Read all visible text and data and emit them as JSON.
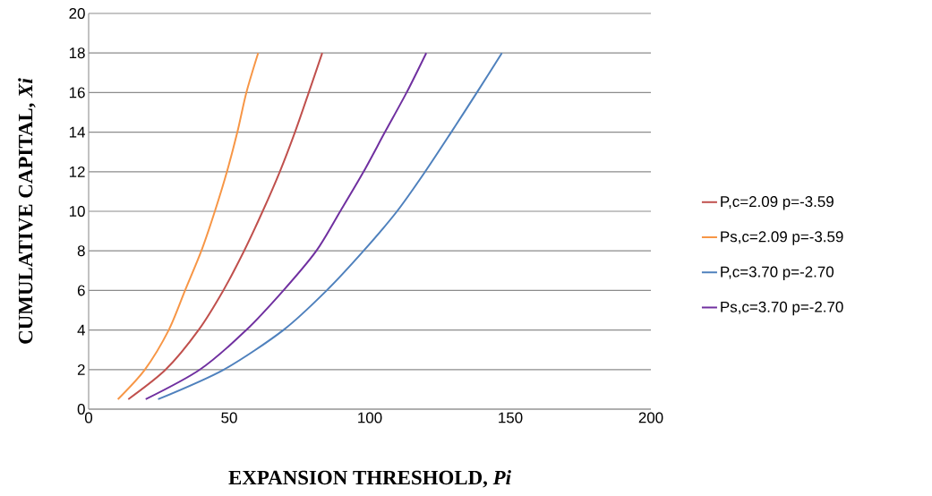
{
  "chart_data": {
    "type": "line",
    "xlabel": "EXPANSION THRESHOLD, *Pi*",
    "ylabel": "CUMULATIVE CAPITAL, *Xi*",
    "xlim": [
      0,
      200
    ],
    "xticks": [
      0,
      50,
      100,
      150,
      200
    ],
    "ylim": [
      0,
      20
    ],
    "yticks": [
      0,
      2,
      4,
      6,
      8,
      10,
      12,
      14,
      16,
      18,
      20
    ],
    "grid": "y",
    "legend": "right",
    "marker": "none",
    "line_style": "solid",
    "series": [
      {
        "name": "P,c=2.09 p=-3.59",
        "color": "#c0504d",
        "x": [
          14.1,
          27.4,
          39.1,
          47.9,
          55.3,
          61.9,
          68.0,
          73.4,
          78.3,
          83.1
        ],
        "values": [
          0.5,
          2,
          4,
          6,
          8,
          10,
          12,
          14,
          16,
          18
        ]
      },
      {
        "name": "Ps,c=2.09 p=-3.59",
        "color": "#f79646",
        "x": [
          10.4,
          20.0,
          28.5,
          34.3,
          40.1,
          44.9,
          49.2,
          52.9,
          56.1,
          60.3
        ],
        "values": [
          0.5,
          2,
          4,
          6,
          8,
          10,
          12,
          14,
          16,
          18
        ]
      },
      {
        "name": "P,c=3.70 p=-2.70",
        "color": "#4f81bd",
        "x": [
          24.7,
          48.1,
          69.3,
          84.7,
          97.8,
          109.7,
          119.7,
          129.0,
          138.1,
          147.0
        ],
        "values": [
          0.5,
          2,
          4,
          6,
          8,
          10,
          12,
          14,
          16,
          18
        ]
      },
      {
        "name": "Ps,c=3.70 p=-2.70",
        "color": "#7030a0",
        "x": [
          20.3,
          39.6,
          56.1,
          69.3,
          81.0,
          89.5,
          97.8,
          105.4,
          113.1,
          120.1
        ],
        "values": [
          0.5,
          2,
          4,
          6,
          8,
          10,
          12,
          14,
          16,
          18
        ]
      }
    ]
  }
}
